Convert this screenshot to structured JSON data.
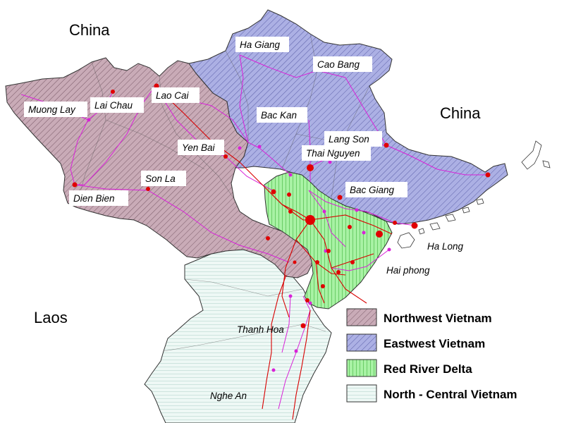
{
  "countries": {
    "china_north": "China",
    "china_east": "China",
    "laos": "Laos"
  },
  "cities": [
    {
      "id": "ha-giang",
      "name": "Ha Giang"
    },
    {
      "id": "cao-bang",
      "name": "Cao Bang"
    },
    {
      "id": "lao-cai",
      "name": "Lao Cai"
    },
    {
      "id": "lai-chau",
      "name": "Lai Chau"
    },
    {
      "id": "muong-lay",
      "name": "Muong Lay"
    },
    {
      "id": "bac-kan",
      "name": "Bac Kan"
    },
    {
      "id": "lang-son",
      "name": "Lang Son"
    },
    {
      "id": "yen-bai",
      "name": "Yen Bai"
    },
    {
      "id": "thai-nguyen",
      "name": "Thai Nguyen"
    },
    {
      "id": "son-la",
      "name": "Son La"
    },
    {
      "id": "bac-giang",
      "name": "Bac Giang"
    },
    {
      "id": "dien-bien",
      "name": "Dien Bien"
    },
    {
      "id": "ha-long",
      "name": "Ha Long"
    },
    {
      "id": "hai-phong",
      "name": "Hai phong"
    },
    {
      "id": "thanh-hoa",
      "name": "Thanh Hoa"
    },
    {
      "id": "nghe-an",
      "name": "Nghe An"
    }
  ],
  "legend": [
    {
      "label": "Northwest Vietnam",
      "color": "#c7a9b5",
      "hatch": "#7a5a68"
    },
    {
      "label": "Eastwest Vietnam",
      "color": "#aaaee2",
      "hatch": "#5a5ea8"
    },
    {
      "label": "Red River Delta",
      "color": "#a6f0a2",
      "hatch": "#2ea82a"
    },
    {
      "label": "North - Central Vietnam",
      "color": "#e8f5f1",
      "hatch": "#7fb5a8"
    }
  ],
  "colors": {
    "roads": "#d822d8",
    "rivers": "#d80000",
    "city_dot": "#e00000"
  }
}
